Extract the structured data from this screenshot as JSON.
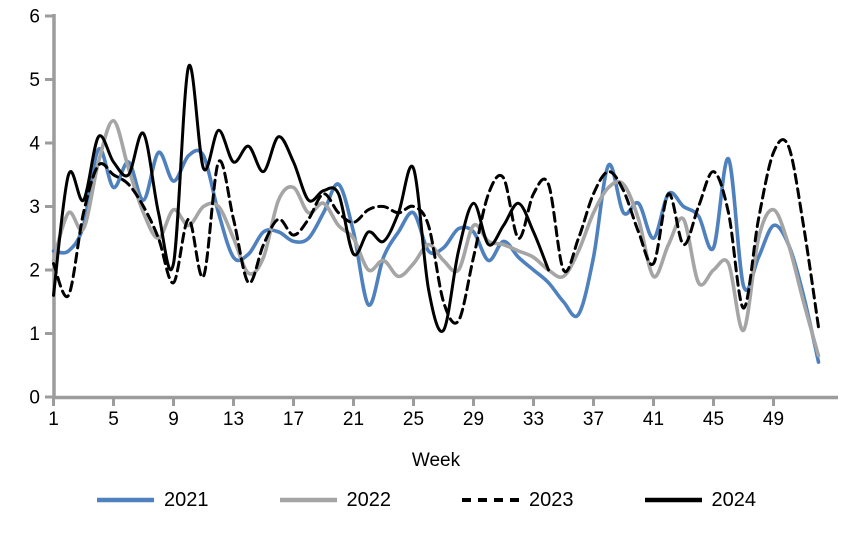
{
  "chart_data": {
    "type": "line",
    "title": "",
    "xlabel": "Week",
    "ylabel": "",
    "grid": false,
    "legend_position": "bottom",
    "axis_color": "#9C9C9C",
    "text_color": "#000000",
    "x_start_week": 1,
    "x_end_week": 52,
    "x_ticks": [
      1,
      5,
      9,
      13,
      17,
      21,
      25,
      29,
      33,
      37,
      41,
      45,
      49
    ],
    "y_ticks": [
      0,
      1,
      2,
      3,
      4,
      5,
      6
    ],
    "ylim": [
      0,
      6
    ],
    "series": [
      {
        "name": "2021",
        "color": "#4E81BD",
        "dash": "solid",
        "values": [
          2.3,
          2.3,
          2.7,
          3.9,
          3.3,
          3.7,
          3.1,
          3.85,
          3.4,
          3.8,
          3.8,
          2.9,
          2.2,
          2.25,
          2.6,
          2.6,
          2.45,
          2.5,
          2.9,
          3.35,
          2.6,
          1.45,
          2.2,
          2.6,
          2.9,
          2.3,
          2.35,
          2.65,
          2.6,
          2.15,
          2.45,
          2.2,
          2.0,
          1.8,
          1.5,
          1.3,
          2.2,
          3.65,
          2.9,
          3.05,
          2.5,
          3.2,
          3.0,
          2.85,
          2.35,
          3.75,
          1.75,
          2.2,
          2.7,
          2.4,
          1.6,
          0.55
        ]
      },
      {
        "name": "2022",
        "color": "#A5A5A5",
        "dash": "solid",
        "values": [
          2.15,
          2.9,
          2.65,
          3.7,
          4.35,
          3.6,
          2.9,
          2.5,
          2.95,
          2.7,
          3.0,
          3.0,
          2.5,
          1.95,
          2.2,
          3.1,
          3.3,
          2.9,
          3.05,
          2.7,
          2.5,
          2.0,
          2.15,
          1.9,
          2.1,
          2.4,
          2.15,
          2.0,
          2.7,
          2.45,
          2.4,
          2.3,
          2.2,
          2.0,
          1.9,
          2.3,
          2.9,
          3.3,
          3.35,
          2.8,
          1.9,
          2.4,
          2.8,
          1.8,
          2.0,
          2.1,
          1.05,
          2.5,
          2.95,
          2.4,
          1.5,
          0.65
        ]
      },
      {
        "name": "2023",
        "color": "#000000",
        "dash": "dashed",
        "values": [
          2.1,
          1.6,
          2.9,
          3.65,
          3.5,
          3.35,
          3.0,
          2.5,
          1.8,
          2.8,
          1.9,
          3.7,
          2.8,
          1.8,
          2.4,
          2.8,
          2.55,
          2.8,
          3.2,
          2.9,
          2.75,
          2.95,
          3.0,
          2.9,
          3.0,
          2.7,
          1.5,
          1.2,
          2.2,
          3.2,
          3.45,
          2.5,
          3.2,
          3.35,
          2.0,
          2.5,
          3.2,
          3.55,
          3.25,
          2.6,
          2.1,
          3.2,
          2.4,
          3.0,
          3.55,
          2.9,
          1.4,
          2.8,
          3.85,
          3.95,
          2.7,
          1.1
        ]
      },
      {
        "name": "2024",
        "color": "#000000",
        "dash": "solid",
        "values": [
          1.6,
          3.5,
          3.1,
          4.1,
          3.7,
          3.5,
          4.15,
          2.9,
          2.1,
          5.2,
          3.6,
          4.2,
          3.7,
          3.95,
          3.55,
          4.1,
          3.7,
          3.1,
          3.25,
          3.2,
          2.25,
          2.6,
          2.45,
          2.9,
          3.6,
          1.7,
          1.05,
          2.3,
          3.05,
          2.4,
          2.7,
          3.05,
          2.6,
          2.0
        ]
      }
    ]
  }
}
